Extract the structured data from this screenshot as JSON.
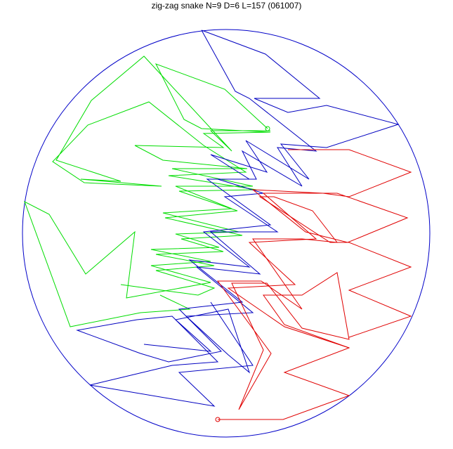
{
  "title": "zig-zag snake N=9 D=6 L=157 (061007)",
  "colors": {
    "boundary": "#0000c8",
    "green_snake": "#00dd00",
    "blue_snake": "#0000c0",
    "red_snake": "#e00000"
  }
}
